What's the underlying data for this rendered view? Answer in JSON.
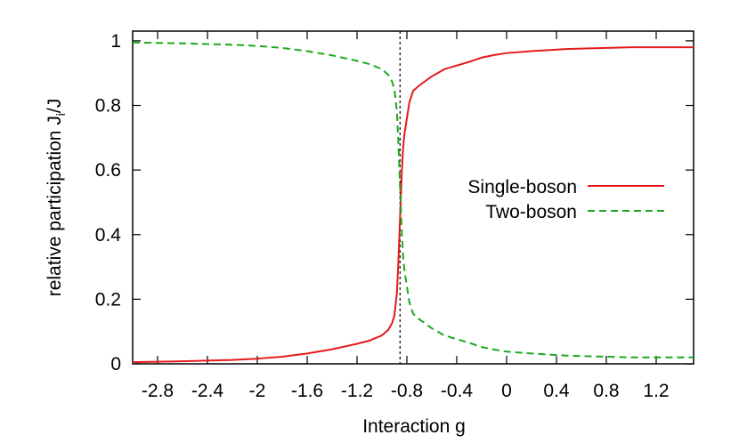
{
  "chart_data": {
    "type": "line",
    "xlabel": "Interaction g",
    "ylabel": "relative participation J",
    "ylabel_sub": "i",
    "ylabel_suffix": "/J",
    "xlim": [
      -3.0,
      1.5
    ],
    "ylim": [
      0,
      1.03
    ],
    "xticks": [
      -2.8,
      -2.4,
      -2,
      -1.6,
      -1.2,
      -0.8,
      -0.4,
      0,
      0.4,
      0.8,
      1.2
    ],
    "xtick_labels": [
      "-2.8",
      "-2.4",
      "-2",
      "-1.6",
      "-1.2",
      "-0.8",
      "-0.4",
      "0",
      "0.4",
      "0.8",
      "1.2"
    ],
    "yticks": [
      0,
      0.2,
      0.4,
      0.6,
      0.8,
      1
    ],
    "ytick_labels": [
      "0",
      "0.2",
      "0.4",
      "0.6",
      "0.8",
      "1"
    ],
    "grid": false,
    "legend_position": "right",
    "vline_x": -0.855,
    "series": [
      {
        "name": "Single-boson",
        "color": "#e41a1c",
        "style": "solid",
        "x": [
          -3.0,
          -2.6,
          -2.2,
          -2.0,
          -1.8,
          -1.6,
          -1.4,
          -1.2,
          -1.1,
          -1.0,
          -0.95,
          -0.92,
          -0.9,
          -0.88,
          -0.87,
          -0.86,
          -0.85,
          -0.84,
          -0.83,
          -0.82,
          -0.8,
          -0.78,
          -0.75,
          -0.7,
          -0.6,
          -0.5,
          -0.3,
          -0.2,
          -0.1,
          0.0,
          0.2,
          0.5,
          0.8,
          1.0,
          1.5
        ],
        "y": [
          0.005,
          0.008,
          0.012,
          0.016,
          0.022,
          0.032,
          0.045,
          0.062,
          0.072,
          0.088,
          0.105,
          0.125,
          0.15,
          0.22,
          0.3,
          0.4,
          0.5,
          0.6,
          0.67,
          0.71,
          0.76,
          0.81,
          0.845,
          0.862,
          0.89,
          0.912,
          0.935,
          0.948,
          0.956,
          0.962,
          0.968,
          0.975,
          0.978,
          0.98,
          0.98
        ]
      },
      {
        "name": "Two-boson",
        "color": "#1ca81c",
        "style": "dashed",
        "x": [
          -3.0,
          -2.6,
          -2.2,
          -2.0,
          -1.8,
          -1.6,
          -1.4,
          -1.2,
          -1.1,
          -1.0,
          -0.95,
          -0.92,
          -0.9,
          -0.88,
          -0.87,
          -0.86,
          -0.85,
          -0.84,
          -0.83,
          -0.82,
          -0.8,
          -0.78,
          -0.75,
          -0.7,
          -0.6,
          -0.5,
          -0.3,
          -0.2,
          -0.1,
          0.0,
          0.2,
          0.5,
          0.8,
          1.0,
          1.5
        ],
        "y": [
          0.995,
          0.992,
          0.988,
          0.984,
          0.978,
          0.968,
          0.955,
          0.938,
          0.928,
          0.912,
          0.895,
          0.875,
          0.85,
          0.78,
          0.7,
          0.6,
          0.5,
          0.4,
          0.33,
          0.29,
          0.24,
          0.19,
          0.155,
          0.138,
          0.11,
          0.088,
          0.065,
          0.052,
          0.044,
          0.038,
          0.032,
          0.025,
          0.022,
          0.02,
          0.02
        ]
      }
    ]
  }
}
